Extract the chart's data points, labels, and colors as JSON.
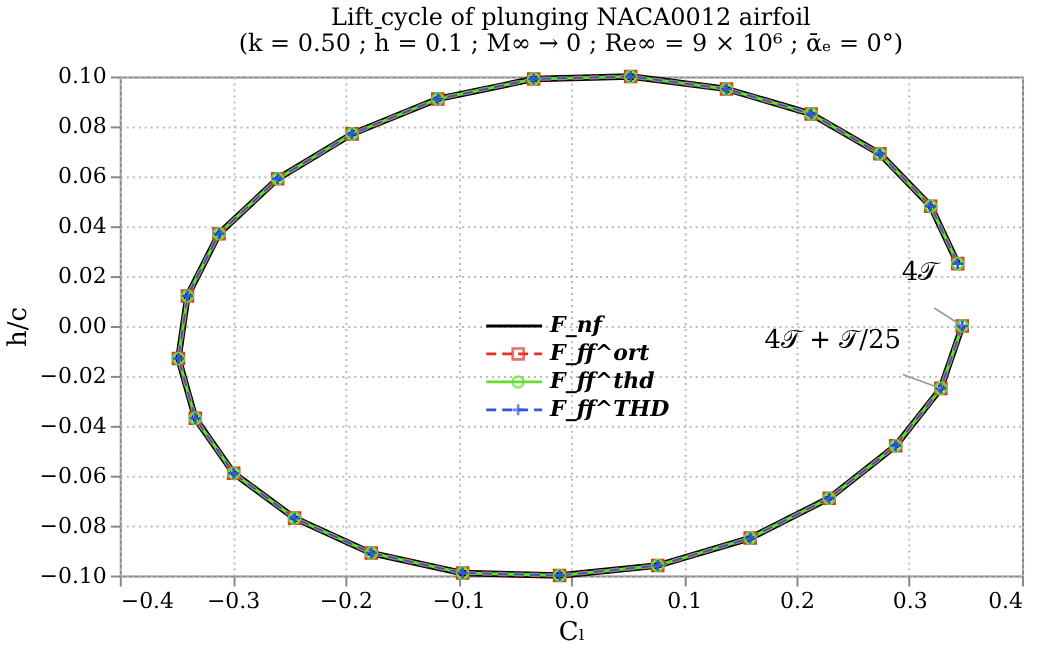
{
  "chart_data": {
    "type": "line",
    "title": "Lift cycle of plunging NACA0012 airfoil",
    "subtitle": "(k = 0.50 ; h̄ = 0.1 ; M∞ → 0 ; Re∞ = 9 × 10⁶ ; ᾱₑ = 0°)",
    "xlabel": "Cₗ",
    "ylabel": "h/c",
    "series": [
      {
        "name": "F_nf",
        "color": "#000000",
        "marker": "none",
        "line_style": "solid",
        "x": [
          0.347,
          0.328,
          0.288,
          0.229,
          0.159,
          0.077,
          -0.01,
          -0.096,
          -0.177,
          -0.245,
          -0.299,
          -0.333,
          -0.348,
          -0.34,
          -0.312,
          -0.26,
          -0.194,
          -0.118,
          -0.033,
          0.053,
          0.138,
          0.213,
          0.274,
          0.319,
          0.343
        ],
        "values": [
          0.0,
          -0.025,
          -0.048,
          -0.069,
          -0.085,
          -0.096,
          -0.1,
          -0.099,
          -0.091,
          -0.077,
          -0.059,
          -0.037,
          -0.013,
          0.012,
          0.037,
          0.059,
          0.077,
          0.091,
          0.099,
          0.1,
          0.095,
          0.085,
          0.069,
          0.048,
          0.025
        ]
      },
      {
        "name": "F_ff^ort",
        "color": "#e8302a",
        "marker": "square",
        "line_style": "dashed",
        "x": [
          0.347,
          0.328,
          0.288,
          0.229,
          0.159,
          0.077,
          -0.01,
          -0.096,
          -0.177,
          -0.245,
          -0.299,
          -0.333,
          -0.348,
          -0.34,
          -0.312,
          -0.26,
          -0.194,
          -0.118,
          -0.033,
          0.053,
          0.138,
          0.213,
          0.274,
          0.319,
          0.343
        ],
        "values": [
          0.0,
          -0.025,
          -0.048,
          -0.069,
          -0.085,
          -0.096,
          -0.1,
          -0.099,
          -0.091,
          -0.077,
          -0.059,
          -0.037,
          -0.013,
          0.012,
          0.037,
          0.059,
          0.077,
          0.091,
          0.099,
          0.1,
          0.095,
          0.085,
          0.069,
          0.048,
          0.025
        ]
      },
      {
        "name": "F_ff^thd",
        "color": "#66dd33",
        "marker": "circle",
        "line_style": "solid",
        "x": [
          0.347,
          0.328,
          0.288,
          0.229,
          0.159,
          0.077,
          -0.01,
          -0.096,
          -0.177,
          -0.245,
          -0.299,
          -0.333,
          -0.348,
          -0.34,
          -0.312,
          -0.26,
          -0.194,
          -0.118,
          -0.033,
          0.053,
          0.138,
          0.213,
          0.274,
          0.319,
          0.343
        ],
        "values": [
          0.0,
          -0.025,
          -0.048,
          -0.069,
          -0.085,
          -0.096,
          -0.1,
          -0.099,
          -0.091,
          -0.077,
          -0.059,
          -0.037,
          -0.013,
          0.012,
          0.037,
          0.059,
          0.077,
          0.091,
          0.099,
          0.1,
          0.095,
          0.085,
          0.069,
          0.048,
          0.025
        ]
      },
      {
        "name": "F_ff^THD",
        "color": "#3355dd",
        "marker": "cross",
        "line_style": "dashed",
        "x": [
          0.347,
          0.328,
          0.288,
          0.229,
          0.159,
          0.077,
          -0.01,
          -0.096,
          -0.177,
          -0.245,
          -0.299,
          -0.333,
          -0.348,
          -0.34,
          -0.312,
          -0.26,
          -0.194,
          -0.118,
          -0.033,
          0.053,
          0.138,
          0.213,
          0.274,
          0.319,
          0.343
        ],
        "values": [
          0.0,
          -0.025,
          -0.048,
          -0.069,
          -0.085,
          -0.096,
          -0.1,
          -0.099,
          -0.091,
          -0.077,
          -0.059,
          -0.037,
          -0.013,
          0.012,
          0.037,
          0.059,
          0.077,
          0.091,
          0.099,
          0.1,
          0.095,
          0.085,
          0.069,
          0.048,
          0.025
        ]
      }
    ],
    "annotations": [
      {
        "text": "4𝒯",
        "x": 0.347,
        "y": 0.0
      },
      {
        "text": "4𝒯 + 𝒯/25",
        "x": 0.328,
        "y": -0.025
      }
    ],
    "xlim": [
      -0.4,
      0.4
    ],
    "xticks": [
      -0.4,
      -0.3,
      -0.2,
      -0.1,
      {
        "value": 0,
        "label": "0.0"
      },
      0.1,
      0.2,
      0.3,
      0.4
    ],
    "ylim": [
      -0.1,
      0.1
    ],
    "yticks": [
      {
        "value": -0.1,
        "label": "−0.10"
      },
      -0.08,
      -0.06,
      -0.04,
      -0.02,
      {
        "value": 0,
        "label": "0.00"
      },
      0.02,
      0.04,
      0.06,
      0.08,
      {
        "value": 0.1,
        "label": "0.10"
      }
    ],
    "grid": true,
    "legend": "center"
  }
}
